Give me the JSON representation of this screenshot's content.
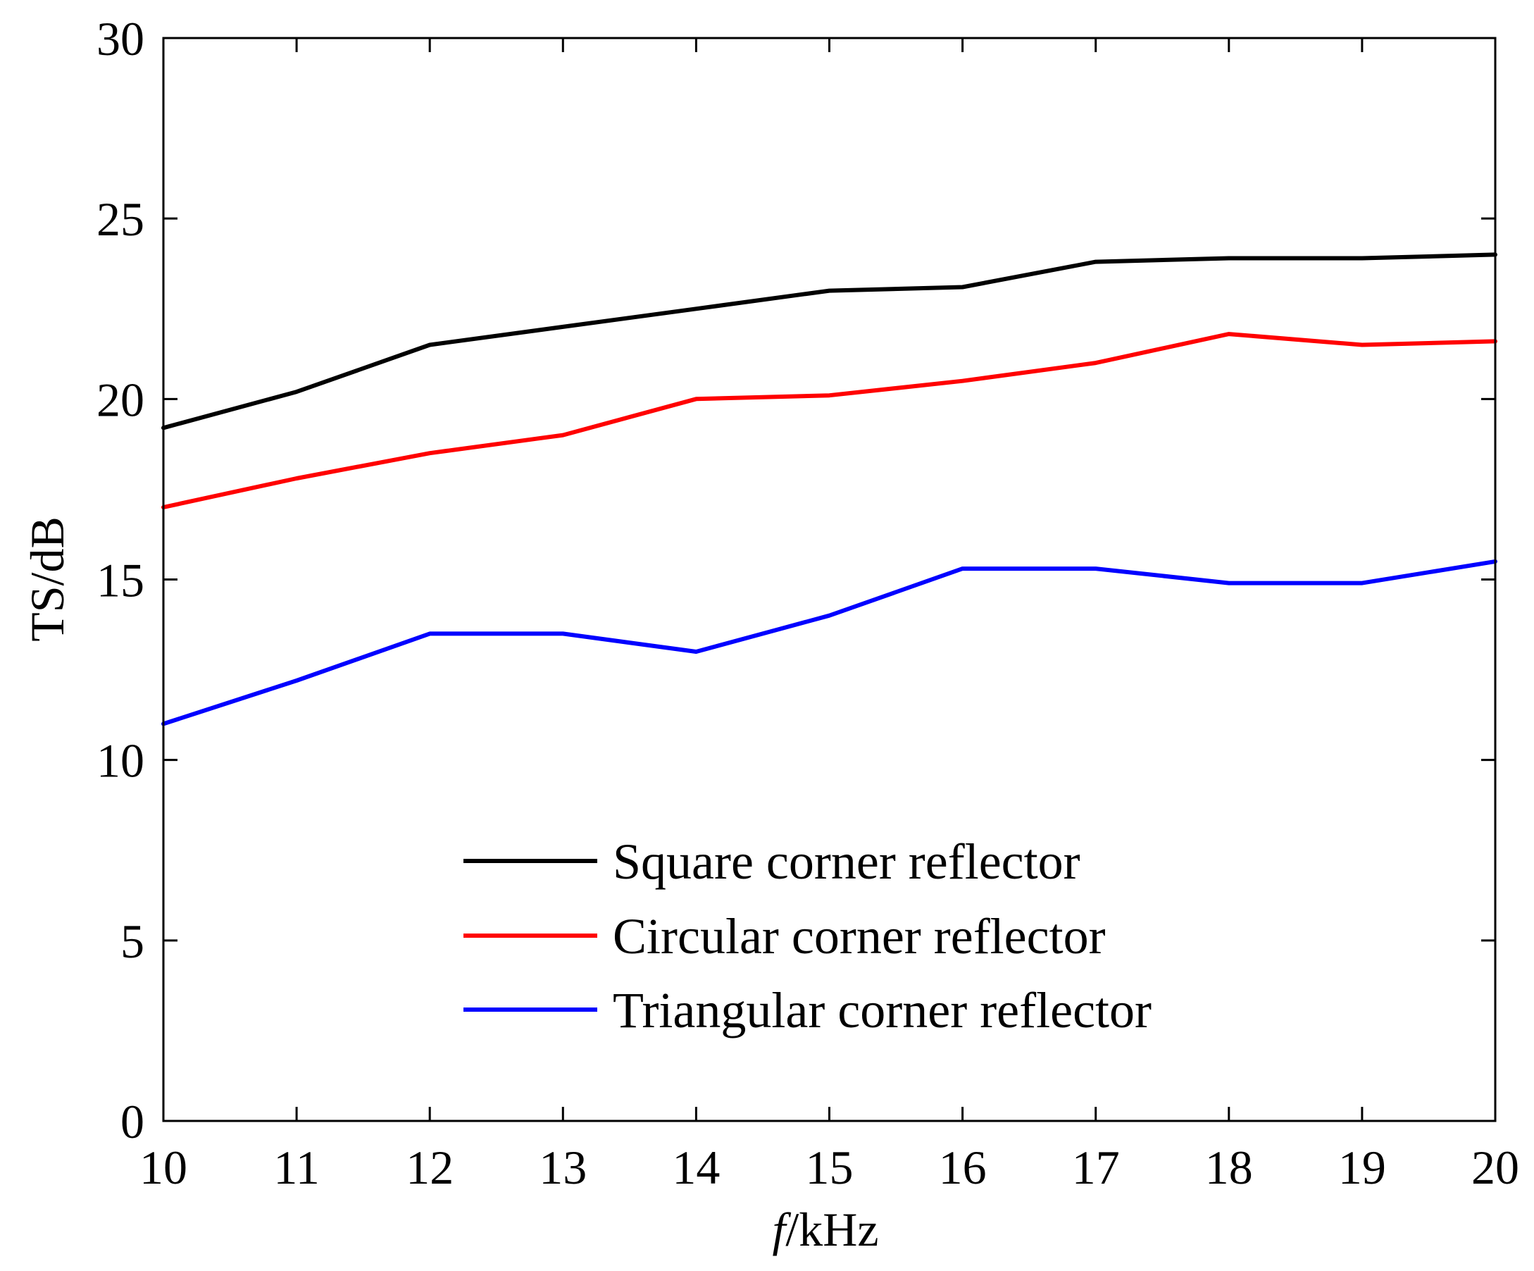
{
  "chart_data": {
    "type": "line",
    "title": "",
    "xlabel_italic": "f",
    "xlabel_rest": "/kHz",
    "ylabel": "TS/dB",
    "xlim": [
      10,
      20
    ],
    "ylim": [
      0,
      30
    ],
    "xticks": [
      10,
      11,
      12,
      13,
      14,
      15,
      16,
      17,
      18,
      19,
      20
    ],
    "yticks": [
      0,
      5,
      10,
      15,
      20,
      25,
      30
    ],
    "grid": false,
    "legend_position": "lower-center",
    "x": [
      10,
      11,
      12,
      13,
      14,
      15,
      16,
      17,
      18,
      19,
      20
    ],
    "series": [
      {
        "name": "Square corner reflector",
        "color": "#000000",
        "values": [
          19.2,
          20.2,
          21.5,
          22.0,
          22.5,
          23.0,
          23.1,
          23.8,
          23.9,
          23.9,
          24.0
        ]
      },
      {
        "name": "Circular corner reflector",
        "color": "#ff0000",
        "values": [
          17.0,
          17.8,
          18.5,
          19.0,
          20.0,
          20.1,
          20.5,
          21.0,
          21.8,
          21.5,
          21.6
        ]
      },
      {
        "name": "Triangular corner reflector",
        "color": "#0000ff",
        "values": [
          11.0,
          12.2,
          13.5,
          13.5,
          13.0,
          14.0,
          15.3,
          15.3,
          14.9,
          14.9,
          15.5
        ]
      }
    ]
  }
}
